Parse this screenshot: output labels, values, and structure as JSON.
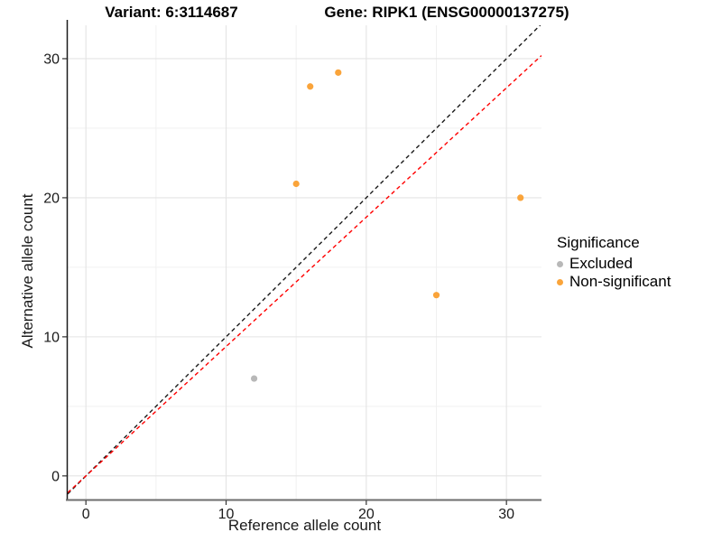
{
  "header": {
    "title_left": "Variant: 6:3114687",
    "title_right": "Gene: RIPK1 (ENSG00000137275)"
  },
  "chart_data": {
    "type": "scatter",
    "xlabel": "Reference allele count",
    "ylabel": "Alternative allele count",
    "xlim": [
      -1.3,
      32.5
    ],
    "ylim": [
      -1.7,
      32.4
    ],
    "xticks": [
      0,
      10,
      20,
      30
    ],
    "yticks": [
      0,
      10,
      20,
      30
    ],
    "xticks_minor": [
      5,
      15,
      25
    ],
    "yticks_minor": [
      5,
      15,
      25
    ],
    "grid": true,
    "series": [
      {
        "name": "Excluded",
        "color": "#B8B8B8",
        "points": [
          [
            12,
            7
          ]
        ]
      },
      {
        "name": "Non-significant",
        "color": "#FAA43A",
        "points": [
          [
            15,
            21
          ],
          [
            16,
            28
          ],
          [
            18,
            29
          ],
          [
            25,
            13
          ],
          [
            31,
            20
          ]
        ]
      }
    ],
    "lines": [
      {
        "name": "identity-line",
        "slope": 1.0,
        "intercept": 0,
        "color": "#1a1a1a",
        "style": "dashed"
      },
      {
        "name": "expected-ratio-line",
        "slope": 0.93,
        "intercept": 0,
        "color": "#FF0000",
        "style": "dashed"
      }
    ],
    "legend": {
      "title": "Significance",
      "position": "right",
      "entries": [
        {
          "label": "Excluded",
          "color": "#B8B8B8"
        },
        {
          "label": "Non-significant",
          "color": "#FAA43A"
        }
      ]
    },
    "colors": {
      "grid_major": "#E4E4E4",
      "grid_minor": "#F0F0F0",
      "axis_line_y": "#1a1a1a",
      "axis_line_x": "#6e6e6e",
      "tick_mark": "#333333",
      "tick_label": "#1a1a1a"
    }
  }
}
